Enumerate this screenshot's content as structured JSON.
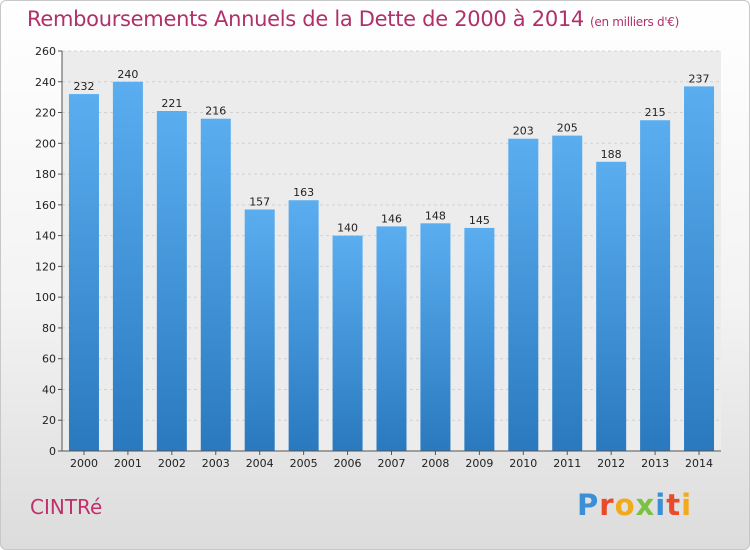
{
  "header": {
    "title": "Remboursements Annuels de la Dette de 2000 à 2014",
    "unit": "(en milliers d'€)"
  },
  "commune": "CINTRé",
  "logo": {
    "text": "Proxiti"
  },
  "chart_data": {
    "type": "bar",
    "title": "Remboursements Annuels de la Dette de 2000 à 2014",
    "subtitle": "(en milliers d'€)",
    "xlabel": "",
    "ylabel": "",
    "categories": [
      "2000",
      "2001",
      "2002",
      "2003",
      "2004",
      "2005",
      "2006",
      "2007",
      "2008",
      "2009",
      "2010",
      "2011",
      "2012",
      "2013",
      "2014"
    ],
    "values": [
      232,
      240,
      221,
      216,
      157,
      163,
      140,
      146,
      148,
      145,
      203,
      205,
      188,
      215,
      237
    ],
    "ylim": [
      0,
      260
    ],
    "yticks": [
      0,
      20,
      40,
      60,
      80,
      100,
      120,
      140,
      160,
      180,
      200,
      220,
      240,
      260
    ],
    "grid": true,
    "bar_color": "#3f94d8"
  }
}
